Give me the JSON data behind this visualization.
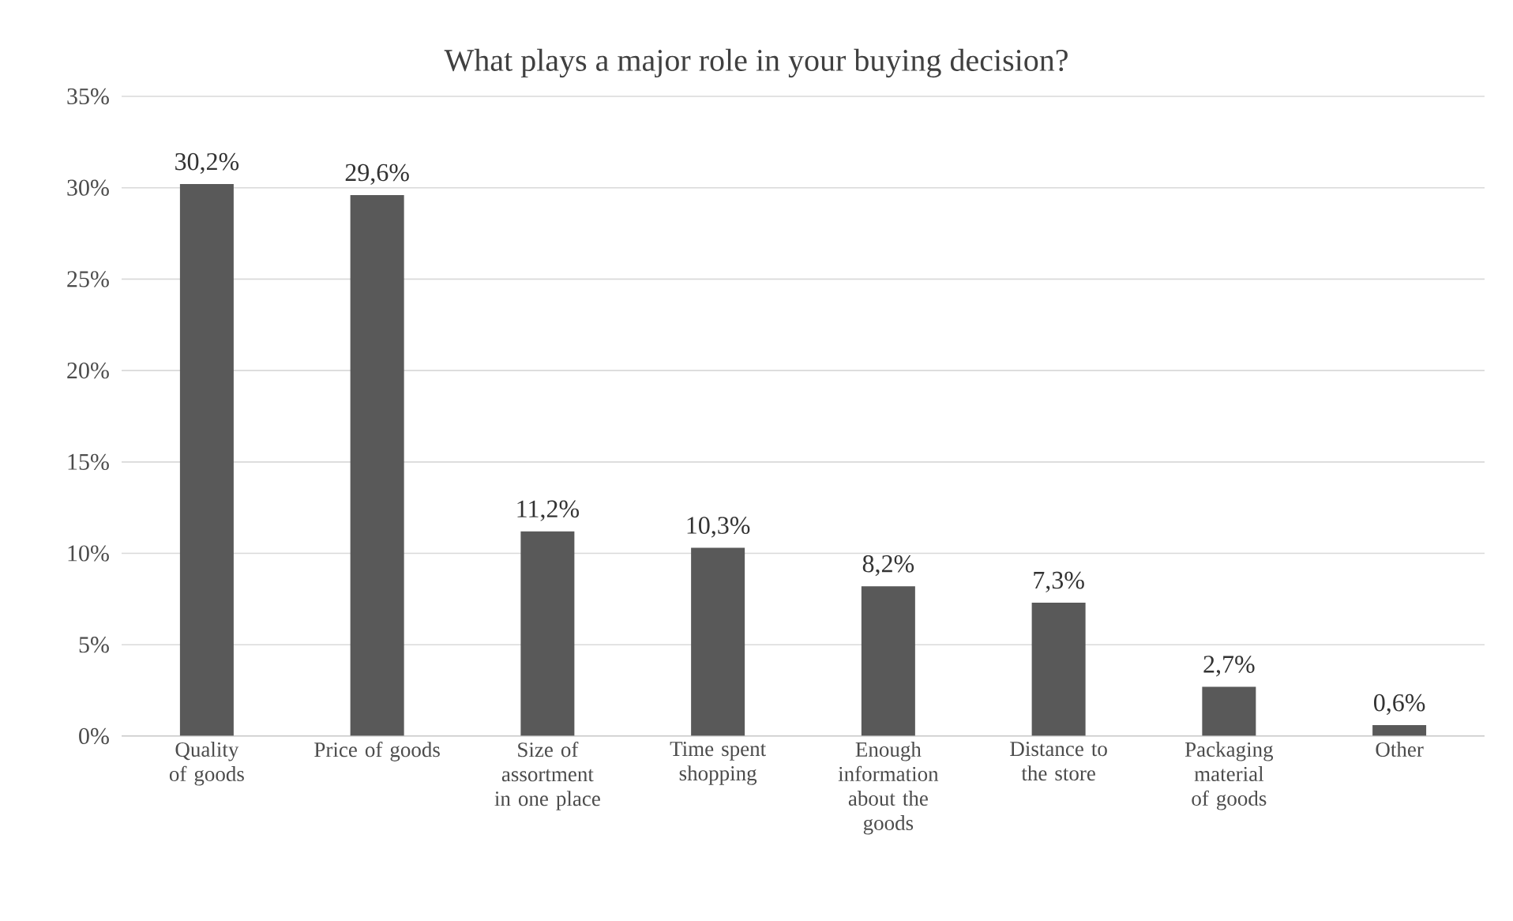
{
  "chart_data": {
    "type": "bar",
    "title": "What plays a major role in your buying decision?",
    "categories": [
      "Quality of goods",
      "Price of goods",
      "Size of assortment in one place",
      "Time spent shopping",
      "Enough information about the goods",
      "Distance to the store",
      "Packaging material of goods",
      "Other"
    ],
    "values": [
      30.2,
      29.6,
      11.2,
      10.3,
      8.2,
      7.3,
      2.7,
      0.6
    ],
    "value_labels": [
      "30,2%",
      "29,6%",
      "11,2%",
      "10,3%",
      "8,2%",
      "7,3%",
      "2,7%",
      "0,6%"
    ],
    "color": "#595959",
    "ylim": [
      0,
      35
    ],
    "yticks": [
      {
        "value": 0,
        "label": "0%"
      },
      {
        "value": 5,
        "label": "5%"
      },
      {
        "value": 10,
        "label": "10%"
      },
      {
        "value": 15,
        "label": "15%"
      },
      {
        "value": 20,
        "label": "20%"
      },
      {
        "value": 25,
        "label": "25%"
      },
      {
        "value": 30,
        "label": "30%"
      },
      {
        "value": 35,
        "label": "35%"
      }
    ],
    "grid": "y"
  }
}
